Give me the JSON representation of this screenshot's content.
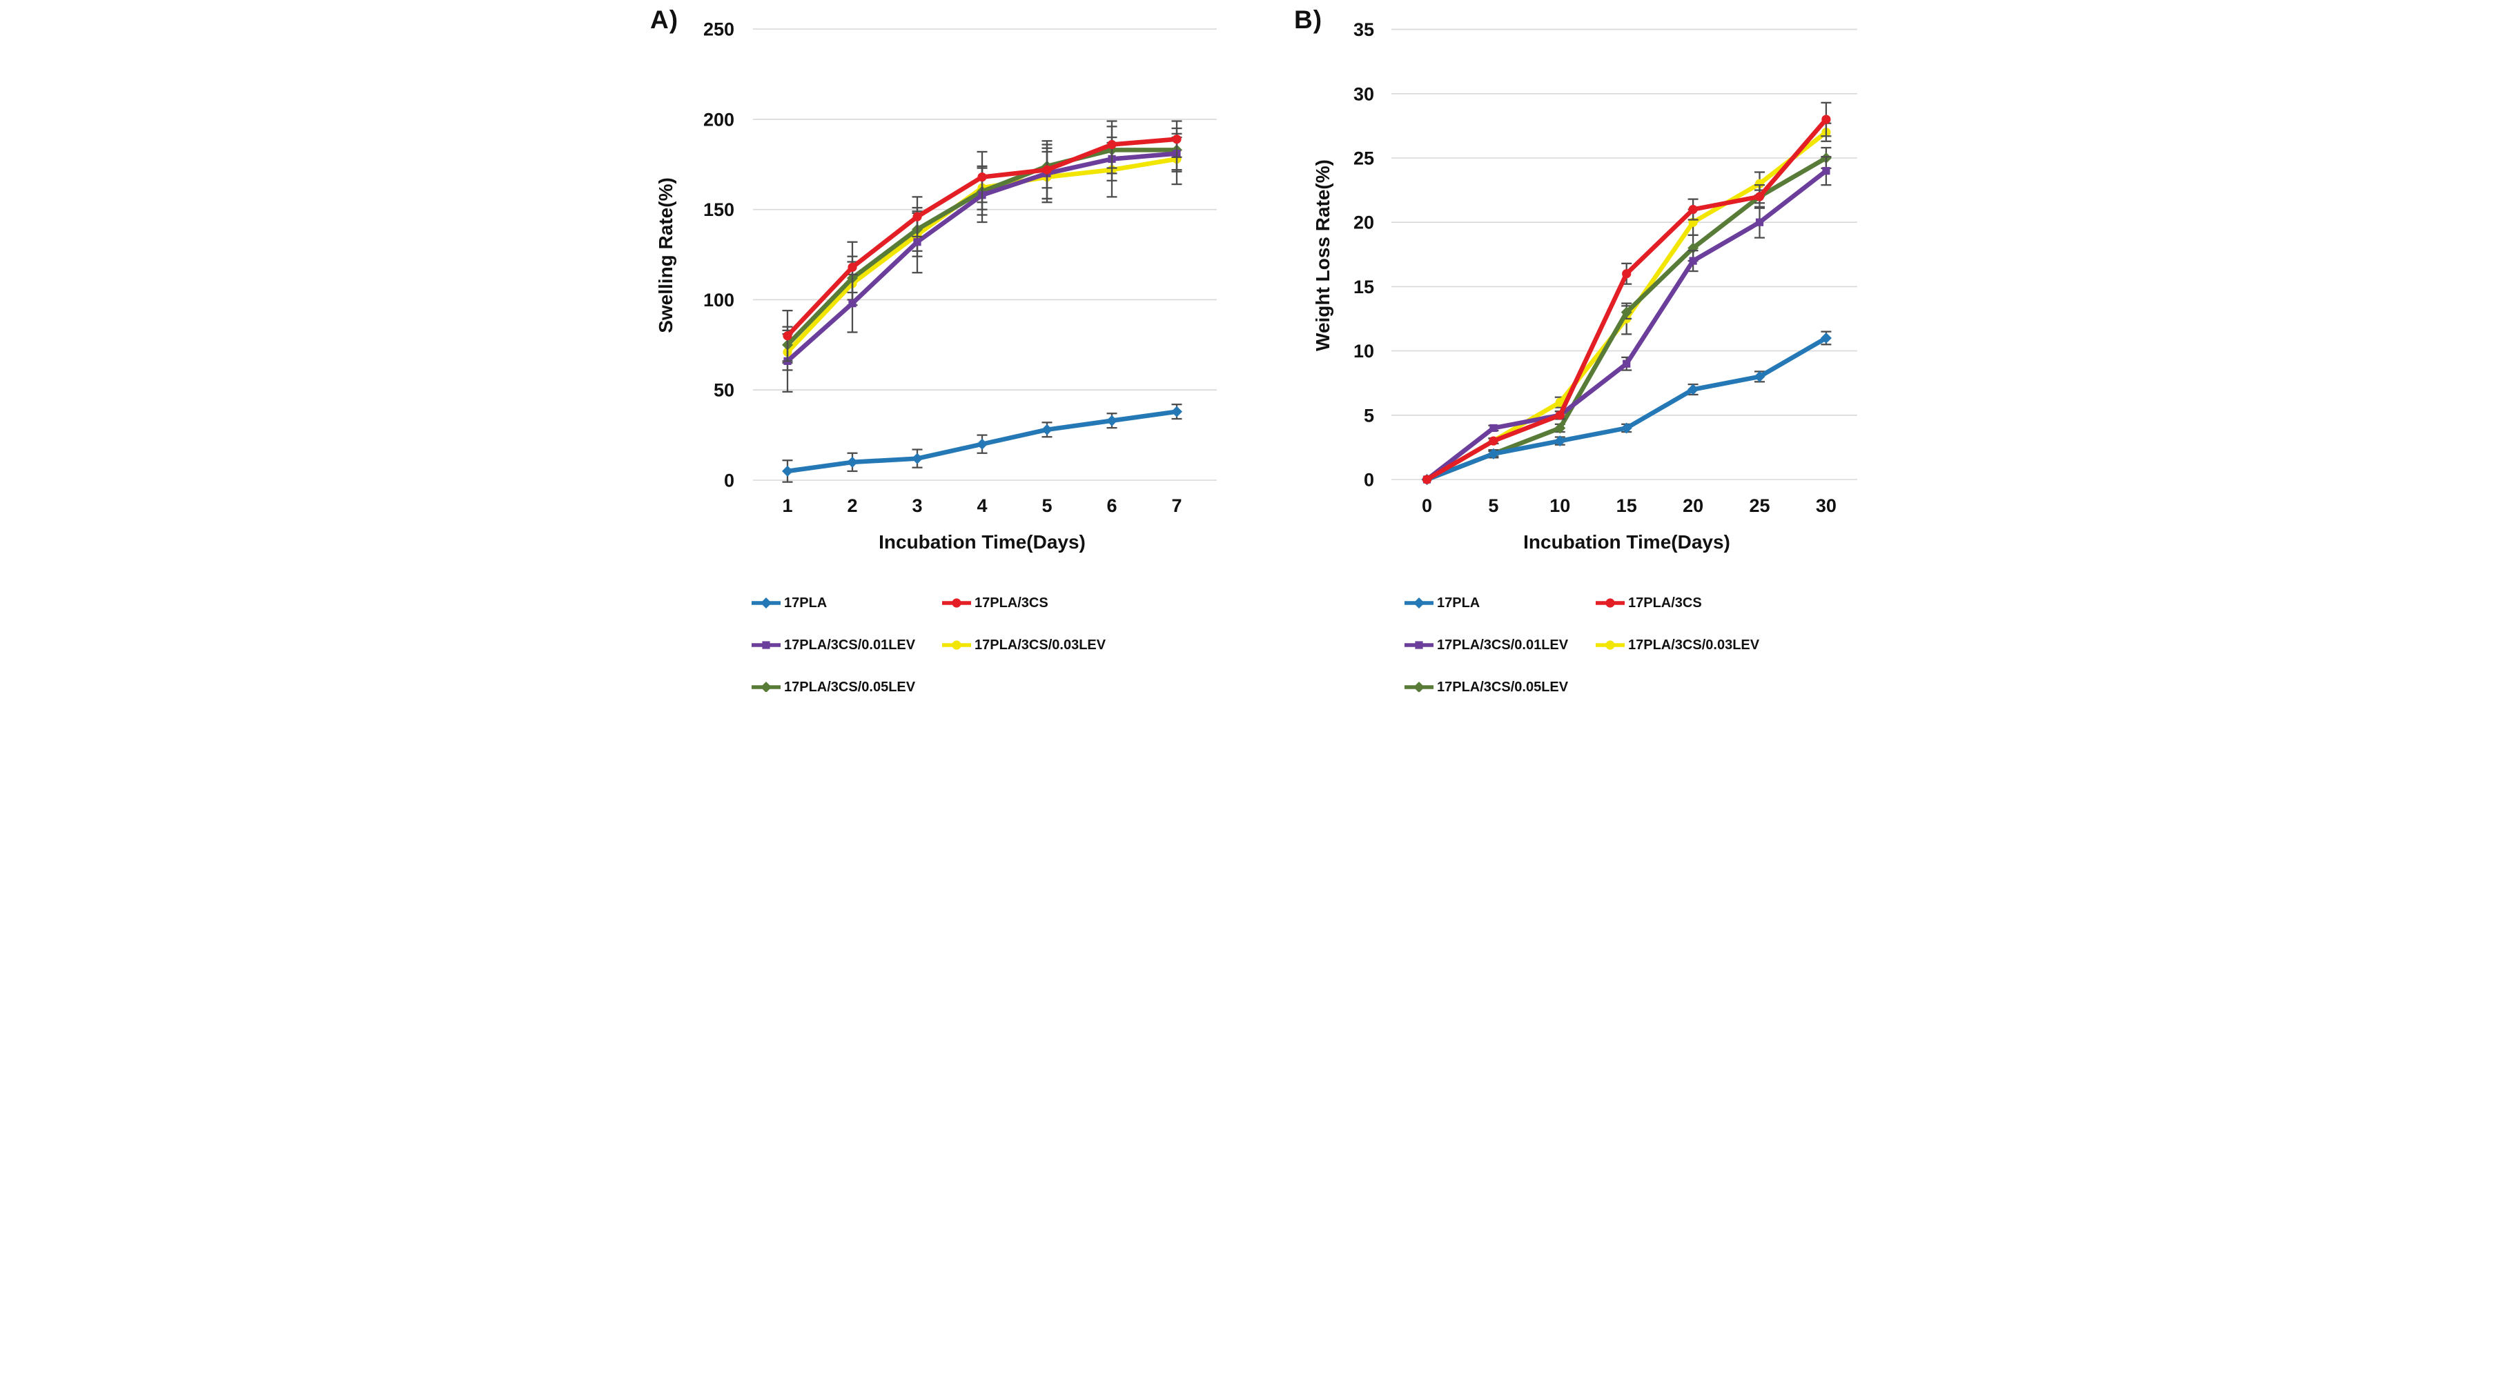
{
  "figure": {
    "background": "#ffffff",
    "grid_color": "#d8d8d8",
    "error_bar_color": "#4d4d4d",
    "text_color": "#111111"
  },
  "chart_data": [
    {
      "type": "line",
      "panel_label": "A)",
      "xlabel": "Incubation Time(Days)",
      "ylabel": "Swelling Rate(%)",
      "categories": [
        "1",
        "2",
        "3",
        "4",
        "5",
        "6",
        "7"
      ],
      "x_values": [
        1,
        2,
        3,
        4,
        5,
        6,
        7
      ],
      "ylim": [
        0,
        250
      ],
      "ytick_step": 50,
      "ytick_labels": [
        "0",
        "50",
        "100",
        "150",
        "200",
        "250"
      ],
      "grid": true,
      "legend_position": "bottom",
      "draw_order": [
        3,
        4,
        2,
        0,
        1
      ],
      "series": [
        {
          "name": "17PLA",
          "color": "#2478b5",
          "marker": "diamond",
          "values": [
            5,
            10,
            12,
            20,
            28,
            33,
            38
          ],
          "errors": [
            6,
            5,
            5,
            5,
            4,
            4,
            4
          ]
        },
        {
          "name": "17PLA/3CS",
          "color": "#e31e24",
          "marker": "circle",
          "values": [
            80,
            118,
            146,
            168,
            172,
            186,
            189
          ],
          "errors": [
            14,
            14,
            11,
            14,
            16,
            13,
            10
          ]
        },
        {
          "name": "17PLA/3CS/0.01LEV",
          "color": "#6c3e9c",
          "marker": "square",
          "values": [
            66,
            98,
            132,
            158,
            170,
            178,
            181
          ],
          "errors": [
            17,
            16,
            17,
            15,
            14,
            12,
            9
          ]
        },
        {
          "name": "17PLA/3CS/0.03LEV",
          "color": "#f2e500",
          "marker": "circle",
          "values": [
            71,
            109,
            136,
            162,
            168,
            172,
            178
          ],
          "errors": [
            10,
            12,
            12,
            12,
            14,
            15,
            14
          ]
        },
        {
          "name": "17PLA/3CS/0.05LEV",
          "color": "#587c38",
          "marker": "diamond",
          "values": [
            75,
            112,
            139,
            160,
            174,
            183,
            183
          ],
          "errors": [
            10,
            12,
            12,
            13,
            12,
            13,
            12
          ]
        }
      ]
    },
    {
      "type": "line",
      "panel_label": "B)",
      "xlabel": "Incubation Time(Days)",
      "ylabel": "Weight Loss Rate(%)",
      "categories": [
        "0",
        "5",
        "10",
        "15",
        "20",
        "25",
        "30"
      ],
      "x_values": [
        0,
        5,
        10,
        15,
        20,
        25,
        30
      ],
      "ylim": [
        0,
        35
      ],
      "ytick_step": 5,
      "ytick_labels": [
        "0",
        "5",
        "10",
        "15",
        "20",
        "25",
        "30",
        "35"
      ],
      "grid": true,
      "legend_position": "bottom",
      "draw_order": [
        3,
        4,
        2,
        0,
        1
      ],
      "series": [
        {
          "name": "17PLA",
          "color": "#2478b5",
          "marker": "diamond",
          "values": [
            0,
            2,
            3,
            4,
            7,
            8,
            11
          ],
          "errors": [
            0,
            0.3,
            0.3,
            0.3,
            0.4,
            0.4,
            0.5
          ]
        },
        {
          "name": "17PLA/3CS",
          "color": "#e31e24",
          "marker": "circle",
          "values": [
            0,
            3,
            5,
            16,
            21,
            22,
            28
          ],
          "errors": [
            0,
            0.2,
            0.3,
            0.8,
            0.8,
            0.5,
            1.3
          ]
        },
        {
          "name": "17PLA/3CS/0.01LEV",
          "color": "#6c3e9c",
          "marker": "square",
          "values": [
            0,
            4,
            5,
            9,
            17,
            20,
            24
          ],
          "errors": [
            0,
            0.2,
            0.3,
            0.5,
            0.8,
            1.2,
            1.1
          ]
        },
        {
          "name": "17PLA/3CS/0.03LEV",
          "color": "#f2e500",
          "marker": "circle",
          "values": [
            0,
            3,
            6,
            12.5,
            20,
            23,
            27
          ],
          "errors": [
            0,
            0.2,
            0.4,
            1.2,
            1,
            0.9,
            0.7
          ]
        },
        {
          "name": "17PLA/3CS/0.05LEV",
          "color": "#587c38",
          "marker": "diamond",
          "values": [
            0,
            2,
            4,
            13,
            18,
            22,
            25
          ],
          "errors": [
            0,
            0.2,
            0.3,
            0.5,
            1,
            0.9,
            0.8
          ]
        }
      ]
    }
  ]
}
